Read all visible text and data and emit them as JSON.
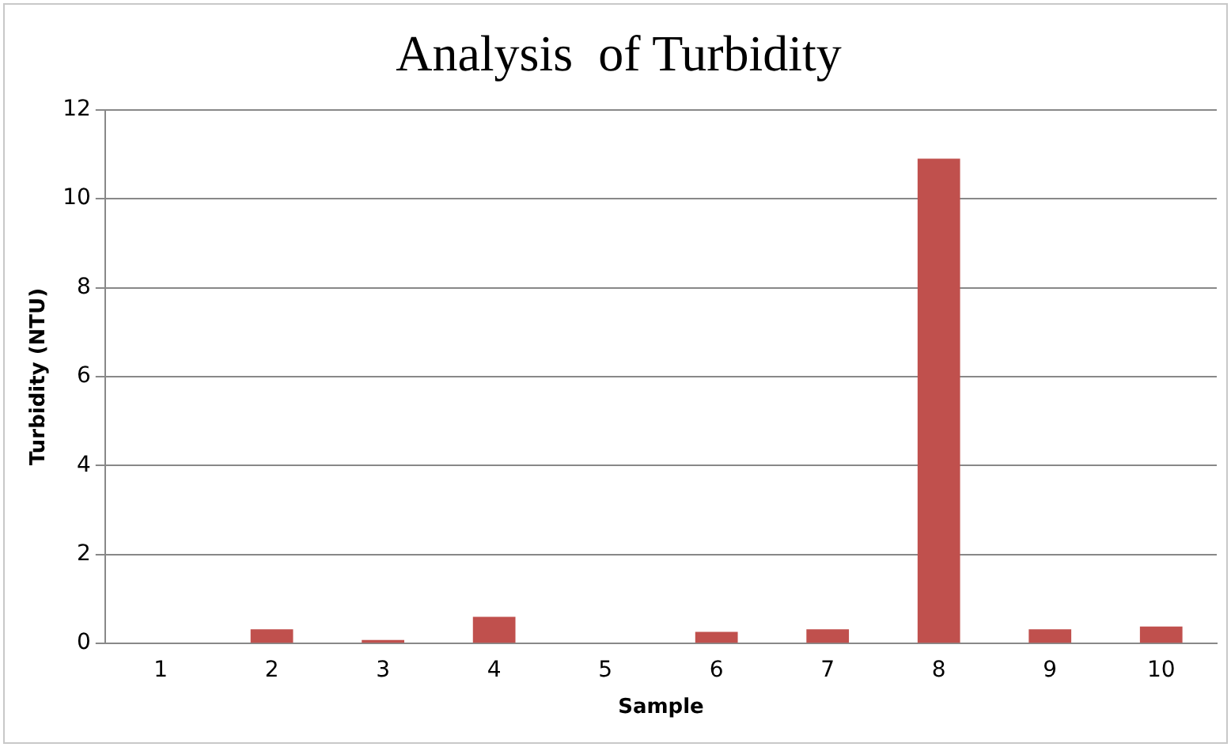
{
  "chart_data": {
    "type": "bar",
    "title": "Analysis  of Turbidity",
    "xlabel": "Sample",
    "ylabel": "Turbidity (NTU)",
    "categories": [
      "1",
      "2",
      "3",
      "4",
      "5",
      "6",
      "7",
      "8",
      "9",
      "10"
    ],
    "values": [
      0,
      0.32,
      0.08,
      0.6,
      0,
      0.26,
      0.32,
      10.9,
      0.32,
      0.38
    ],
    "color": "#c0504d",
    "ylim": [
      0,
      12
    ],
    "yticks": [
      0,
      2,
      4,
      6,
      8,
      10,
      12
    ],
    "grid": "y",
    "legend": false
  }
}
